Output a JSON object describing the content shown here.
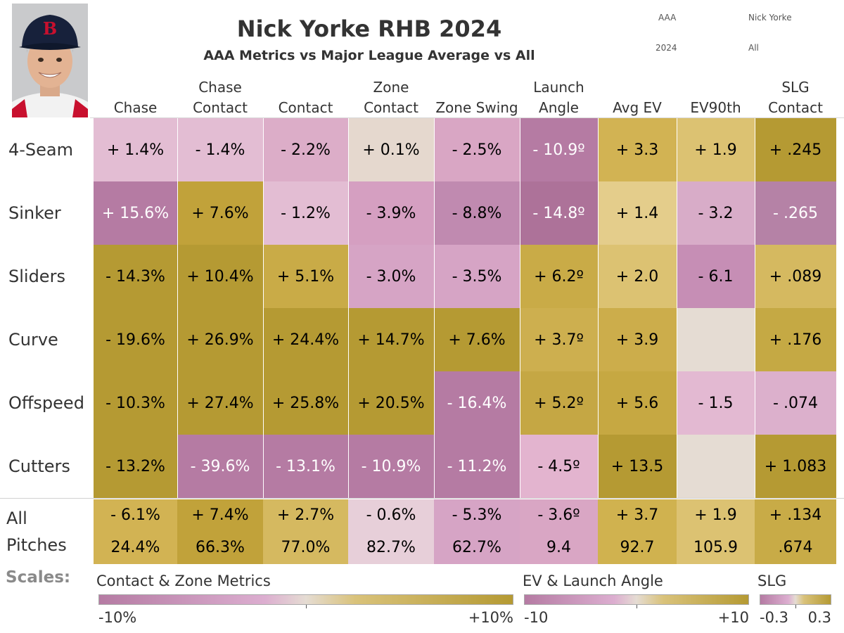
{
  "header": {
    "title": "Nick Yorke RHB 2024",
    "subtitle": "AAA Metrics vs Major League Average vs All",
    "filters": [
      "AAA",
      "Nick Yorke",
      "2024",
      "All"
    ]
  },
  "chart_data": {
    "type": "heatmap",
    "columns": [
      [
        "",
        "Chase"
      ],
      [
        "Chase",
        "Contact"
      ],
      [
        "",
        "Contact"
      ],
      [
        "Zone",
        "Contact"
      ],
      [
        "",
        "Zone Swing"
      ],
      [
        "Launch",
        "Angle"
      ],
      [
        "",
        "Avg EV"
      ],
      [
        "",
        "EV90th"
      ],
      [
        "SLG",
        "Contact"
      ]
    ],
    "rows": [
      {
        "label": "4-Seam",
        "values": [
          "+ 1.4%",
          "- 1.4%",
          "- 2.2%",
          "+ 0.1%",
          "- 2.5%",
          "- 10.9º",
          "+ 3.3",
          "+ 1.9",
          "+ .245"
        ]
      },
      {
        "label": "Sinker",
        "values": [
          "+ 15.6%",
          "+ 7.6%",
          "- 1.2%",
          "- 3.9%",
          "- 8.8%",
          "- 14.8º",
          "+ 1.4",
          "- 3.2",
          "- .265"
        ]
      },
      {
        "label": "Sliders",
        "values": [
          "- 14.3%",
          "+ 10.4%",
          "+ 5.1%",
          "- 3.0%",
          "- 3.5%",
          "+ 6.2º",
          "+ 2.0",
          "- 6.1",
          "+ .089"
        ]
      },
      {
        "label": "Curve",
        "values": [
          "- 19.6%",
          "+ 26.9%",
          "+ 24.4%",
          "+ 14.7%",
          "+ 7.6%",
          "+ 3.7º",
          "+ 3.9",
          "",
          "+ .176"
        ]
      },
      {
        "label": "Offspeed",
        "values": [
          "- 10.3%",
          "+ 27.4%",
          "+ 25.8%",
          "+ 20.5%",
          "- 16.4%",
          "+ 5.2º",
          "+ 5.6",
          "- 1.5",
          "- .074"
        ]
      },
      {
        "label": "Cutters",
        "values": [
          "- 13.2%",
          "- 39.6%",
          "- 13.1%",
          "- 10.9%",
          "- 11.2%",
          "- 4.5º",
          "+ 13.5",
          "",
          "+ 1.083"
        ]
      }
    ],
    "all_pitches": {
      "label": [
        "All",
        "Pitches"
      ],
      "diff": [
        "- 6.1%",
        "+ 7.4%",
        "+ 2.7%",
        "- 0.6%",
        "- 5.3%",
        "- 3.6º",
        "+ 3.7",
        "+ 1.9",
        "+ .134"
      ],
      "value": [
        "24.4%",
        "66.3%",
        "77.0%",
        "82.7%",
        "62.7%",
        "9.4",
        "92.7",
        "105.9",
        ".674"
      ]
    },
    "cell_colors": [
      [
        "#e3bdd3",
        "#e3bdd3",
        "#dcadc8",
        "#e5d8ce",
        "#d9a6c4",
        "#b57ba3",
        "#d2b353",
        "#dcc272",
        "#b59a33"
      ],
      [
        "#b57ba3",
        "#c1a23a",
        "#e3bdd3",
        "#d59fc1",
        "#c08ab0",
        "#ad7299",
        "#e4cd8b",
        "#d8acc8",
        "#b582a6"
      ],
      [
        "#b59a33",
        "#b59a33",
        "#c9ab47",
        "#d6a4c5",
        "#d6a4c5",
        "#c9ab47",
        "#dcc272",
        "#c68eb5",
        "#d5b960"
      ],
      [
        "#b59a33",
        "#b59a33",
        "#b59a33",
        "#b59a33",
        "#b59a33",
        "#cdaf4f",
        "#ccad4b",
        "#e5dcd3",
        "#c5a944"
      ],
      [
        "#b59a33",
        "#b59a33",
        "#b59a33",
        "#b59a33",
        "#b57ba3",
        "#c5a744",
        "#c6a842",
        "#e3b9d2",
        "#dcb0cc"
      ],
      [
        "#b59a33",
        "#b57ba3",
        "#b57ba3",
        "#b57ba3",
        "#b57ba3",
        "#e3b4cf",
        "#b59a33",
        "#e5dcd3",
        "#b59a33"
      ]
    ],
    "all_colors": [
      "#d2b353",
      "#c1a23a",
      "#d5b960",
      "#e7cfd9",
      "#d6a4c5",
      "#d9a6c4",
      "#d0b24f",
      "#dcc272",
      "#c8ab47"
    ],
    "scales_label": "Scales:",
    "legends": [
      {
        "title": "Contact & Zone Metrics",
        "min": "-10%",
        "max": "+10%"
      },
      {
        "title": "EV & Launch Angle",
        "min": "-10",
        "max": "+10"
      },
      {
        "title": "SLG",
        "min": "-0.3",
        "max": "0.3"
      }
    ],
    "scale_colors": {
      "negative": "#b57ba3",
      "mid": "#e5dcd3",
      "positive": "#b59a33"
    }
  }
}
